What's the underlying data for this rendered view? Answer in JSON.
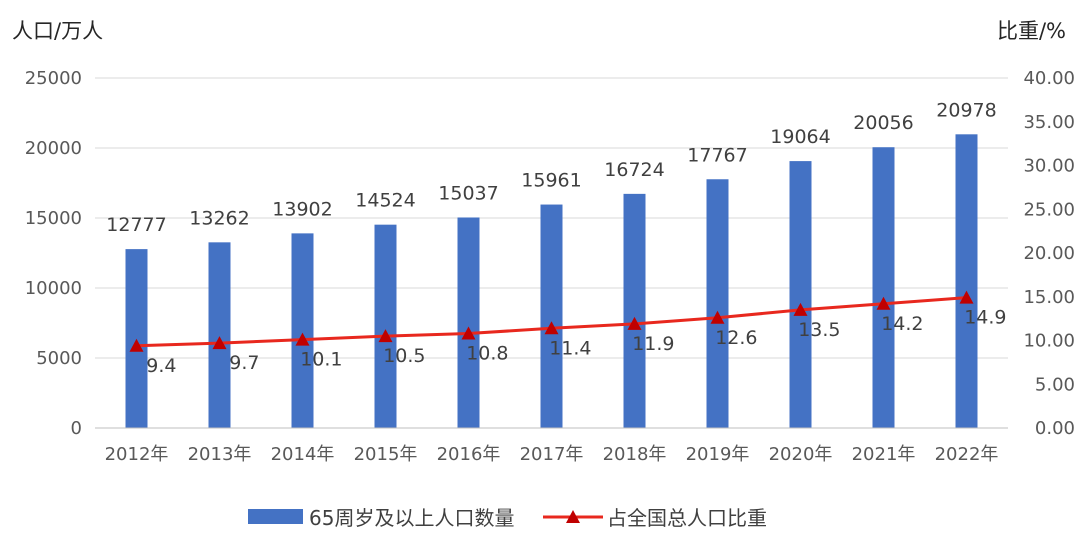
{
  "chart_data": {
    "type": "bar",
    "categories": [
      "2012年",
      "2013年",
      "2014年",
      "2015年",
      "2016年",
      "2017年",
      "2018年",
      "2019年",
      "2020年",
      "2021年",
      "2022年"
    ],
    "series": [
      {
        "name": "65周岁及以上人口数量",
        "type": "bar",
        "axis": "left",
        "color": "#4472c4",
        "values": [
          12777,
          13262,
          13902,
          14524,
          15037,
          15961,
          16724,
          17767,
          19064,
          20056,
          20978
        ],
        "labels": [
          "12777",
          "13262",
          "13902",
          "14524",
          "15037",
          "15961",
          "16724",
          "17767",
          "19064",
          "20056",
          "20978"
        ]
      },
      {
        "name": "占全国总人口比重",
        "type": "line",
        "axis": "right",
        "color": "#e8281e",
        "marker_color": "#c00000",
        "values": [
          9.4,
          9.7,
          10.1,
          10.5,
          10.8,
          11.4,
          11.9,
          12.6,
          13.5,
          14.2,
          14.9
        ],
        "labels": [
          "9.4",
          "9.7",
          "10.1",
          "10.5",
          "10.8",
          "11.4",
          "11.9",
          "12.6",
          "13.5",
          "14.2",
          "14.9"
        ]
      }
    ],
    "ylabel": "人口/万人",
    "y2label": "比重/%",
    "ylim": [
      0,
      25000
    ],
    "y2lim": [
      0,
      40
    ],
    "yticks": [
      "0",
      "5000",
      "10000",
      "15000",
      "20000",
      "25000"
    ],
    "y2ticks": [
      "0.00",
      "5.00",
      "10.00",
      "15.00",
      "20.00",
      "25.00",
      "30.00",
      "35.00",
      "40.00"
    ],
    "grid": true,
    "legend": "bottom"
  }
}
